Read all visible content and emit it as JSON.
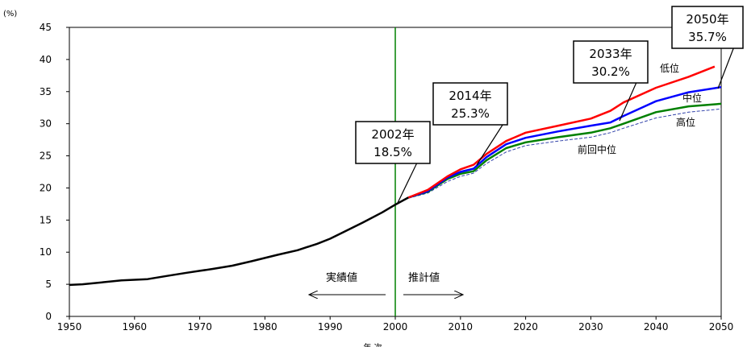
{
  "chart_data": {
    "type": "line",
    "y_unit": "(%)",
    "xlabel": "年 次",
    "xlim": [
      1950,
      2050
    ],
    "ylim": [
      0,
      45
    ],
    "x_ticks": [
      1950,
      1960,
      1970,
      1980,
      1990,
      2000,
      2010,
      2020,
      2030,
      2040,
      2050
    ],
    "y_ticks": [
      0,
      5,
      10,
      15,
      20,
      25,
      30,
      35,
      40,
      45
    ],
    "grid": false,
    "divider_year": 2000,
    "period_labels": {
      "actual": "実績値",
      "projected": "推計値"
    },
    "series": [
      {
        "key": "actual",
        "color": "#000000",
        "points": [
          [
            1950,
            4.9
          ],
          [
            1952,
            5.0
          ],
          [
            1955,
            5.3
          ],
          [
            1958,
            5.6
          ],
          [
            1960,
            5.7
          ],
          [
            1962,
            5.8
          ],
          [
            1965,
            6.3
          ],
          [
            1968,
            6.8
          ],
          [
            1970,
            7.1
          ],
          [
            1972,
            7.4
          ],
          [
            1975,
            7.9
          ],
          [
            1978,
            8.6
          ],
          [
            1980,
            9.1
          ],
          [
            1982,
            9.6
          ],
          [
            1985,
            10.3
          ],
          [
            1988,
            11.3
          ],
          [
            1990,
            12.1
          ],
          [
            1992,
            13.1
          ],
          [
            1995,
            14.6
          ],
          [
            1998,
            16.2
          ],
          [
            2000,
            17.4
          ],
          [
            2002,
            18.5
          ]
        ]
      },
      {
        "key": "low",
        "name": "低位",
        "color": "#ff0000",
        "points": [
          [
            2002,
            18.5
          ],
          [
            2005,
            19.7
          ],
          [
            2008,
            21.8
          ],
          [
            2010,
            22.9
          ],
          [
            2012,
            23.6
          ],
          [
            2014,
            25.3
          ],
          [
            2017,
            27.3
          ],
          [
            2020,
            28.6
          ],
          [
            2025,
            29.7
          ],
          [
            2030,
            30.8
          ],
          [
            2033,
            32.0
          ],
          [
            2035,
            33.3
          ],
          [
            2040,
            35.6
          ],
          [
            2045,
            37.3
          ],
          [
            2049,
            38.9
          ]
        ]
      },
      {
        "key": "medium",
        "name": "中位",
        "color": "#0000ff",
        "points": [
          [
            2002,
            18.5
          ],
          [
            2005,
            19.5
          ],
          [
            2008,
            21.6
          ],
          [
            2010,
            22.5
          ],
          [
            2012,
            23.0
          ],
          [
            2014,
            24.8
          ],
          [
            2017,
            26.8
          ],
          [
            2020,
            27.8
          ],
          [
            2025,
            28.8
          ],
          [
            2030,
            29.7
          ],
          [
            2033,
            30.2
          ],
          [
            2035,
            31.2
          ],
          [
            2040,
            33.5
          ],
          [
            2045,
            34.9
          ],
          [
            2050,
            35.7
          ]
        ]
      },
      {
        "key": "high",
        "name": "高位",
        "color": "#008000",
        "points": [
          [
            2002,
            18.5
          ],
          [
            2005,
            19.4
          ],
          [
            2008,
            21.4
          ],
          [
            2010,
            22.2
          ],
          [
            2012,
            22.6
          ],
          [
            2014,
            24.3
          ],
          [
            2017,
            26.2
          ],
          [
            2020,
            27.1
          ],
          [
            2025,
            27.9
          ],
          [
            2030,
            28.6
          ],
          [
            2033,
            29.3
          ],
          [
            2035,
            30.0
          ],
          [
            2040,
            31.8
          ],
          [
            2045,
            32.7
          ],
          [
            2050,
            33.1
          ]
        ]
      },
      {
        "key": "previous",
        "name": "前回中位",
        "color": "#3344aa",
        "dashed": true,
        "points": [
          [
            2002,
            18.4
          ],
          [
            2005,
            19.2
          ],
          [
            2008,
            21.0
          ],
          [
            2010,
            21.8
          ],
          [
            2012,
            22.3
          ],
          [
            2014,
            23.8
          ],
          [
            2017,
            25.6
          ],
          [
            2020,
            26.6
          ],
          [
            2025,
            27.3
          ],
          [
            2030,
            27.9
          ],
          [
            2033,
            28.6
          ],
          [
            2035,
            29.3
          ],
          [
            2040,
            30.9
          ],
          [
            2045,
            31.8
          ],
          [
            2050,
            32.3
          ]
        ]
      }
    ],
    "callouts": [
      {
        "year_label": "2002年",
        "value_label": "18.5%",
        "x": 2002,
        "y": 18.5
      },
      {
        "year_label": "2014年",
        "value_label": "25.3%",
        "x": 2014,
        "y": 25.3
      },
      {
        "year_label": "2033年",
        "value_label": "30.2%",
        "x": 2033,
        "y": 30.2
      },
      {
        "year_label": "2050年",
        "value_label": "35.7%",
        "x": 2050,
        "y": 35.7
      }
    ]
  }
}
